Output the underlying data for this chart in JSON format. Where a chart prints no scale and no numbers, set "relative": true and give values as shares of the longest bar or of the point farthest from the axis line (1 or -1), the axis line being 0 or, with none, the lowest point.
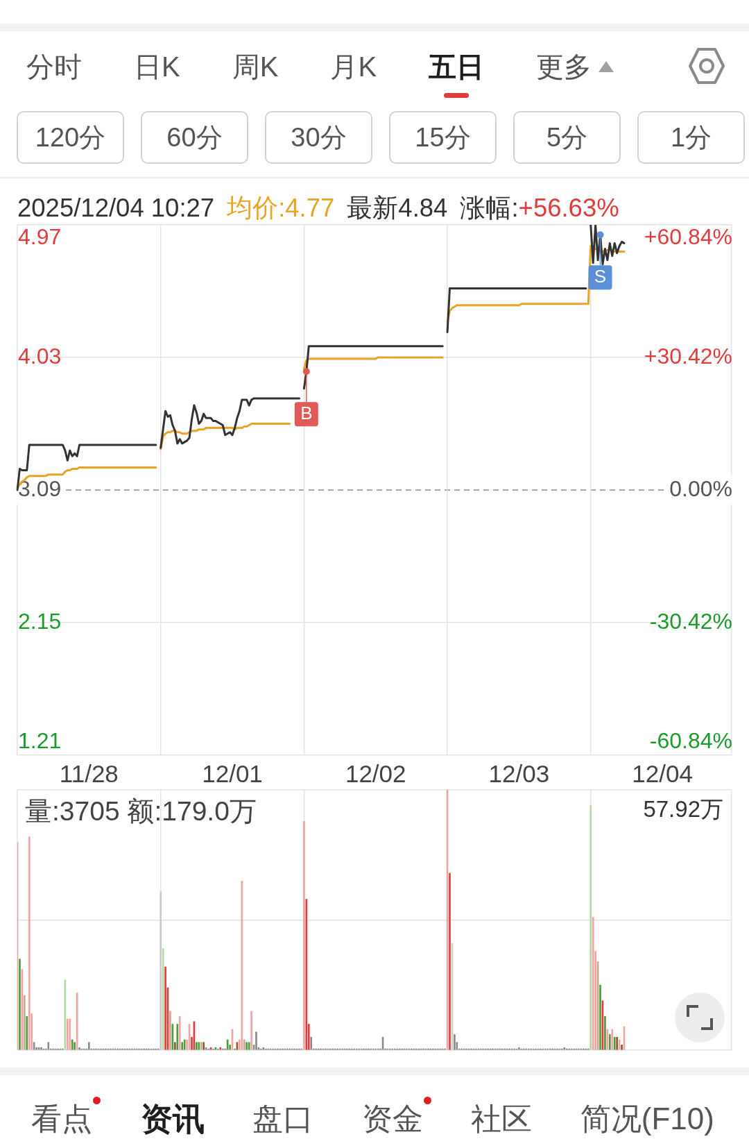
{
  "chart_data": [
    {
      "type": "other",
      "annotations": [
        "分时",
        "日K",
        "周K",
        "月K",
        "五日",
        "更多"
      ]
    },
    {
      "type": "other",
      "annotations": [
        "120分",
        "60分",
        "30分",
        "15分",
        "5分",
        "1分"
      ]
    },
    {
      "type": "line",
      "annotations": [
        "2025/12/04 10:27",
        "均价:4.77",
        "最新4.84",
        "涨幅:",
        "+56.63%",
        {
          "text": "B",
          "y": 3.93
        },
        {
          "text": "S",
          "y": 4.9
        }
      ],
      "categories": [
        null,
        null,
        null,
        null,
        null,
        null,
        null,
        null,
        null,
        null,
        null,
        null,
        null,
        null,
        null,
        null,
        null,
        null,
        null,
        null,
        null,
        null,
        null,
        null,
        null,
        null,
        null,
        null,
        null,
        null,
        "11/28",
        null,
        null,
        null,
        null,
        null,
        null,
        null,
        null,
        null,
        null,
        null,
        null,
        null,
        null,
        null,
        null,
        null,
        null,
        null,
        null,
        null,
        null,
        null,
        null,
        null,
        null,
        null,
        null,
        null,
        null,
        null,
        null,
        null,
        null,
        null,
        null,
        null,
        null,
        null,
        null,
        null,
        null,
        null,
        null,
        null,
        null,
        null,
        null,
        null,
        null,
        null,
        null,
        null,
        null,
        null,
        null,
        null,
        null,
        null,
        "12/01",
        null,
        null,
        null,
        null,
        null,
        null,
        null,
        null,
        null,
        null,
        null,
        null,
        null,
        null,
        null,
        null,
        null,
        null,
        null,
        null,
        null,
        null,
        null,
        null,
        null,
        null,
        null,
        null,
        null,
        null,
        null,
        null,
        null,
        null,
        null,
        null,
        null,
        null,
        null,
        null,
        null,
        null,
        null,
        null,
        null,
        null,
        null,
        null,
        null,
        null,
        null,
        null,
        null,
        null,
        null,
        null,
        null,
        null,
        null,
        "12/02",
        null,
        null,
        null,
        null,
        null,
        null,
        null,
        null,
        null,
        null,
        null,
        null,
        null,
        null,
        null,
        null,
        null,
        null,
        null,
        null,
        null,
        null,
        null,
        null,
        null,
        null,
        null,
        null,
        null,
        null,
        null,
        null,
        null,
        null,
        null,
        null,
        null,
        null,
        null,
        null,
        null,
        null,
        null,
        null,
        null,
        null,
        null,
        null,
        null,
        null,
        null,
        null,
        null,
        null,
        null,
        null,
        null,
        null,
        null,
        "12/03",
        null,
        null,
        null,
        null,
        null,
        null,
        null,
        null,
        null,
        null,
        null,
        null,
        null,
        null,
        null,
        null,
        null,
        null,
        null,
        null,
        null,
        null,
        null,
        null,
        null,
        null,
        null,
        null,
        null,
        null,
        null,
        null,
        null,
        null,
        null,
        null,
        null,
        null,
        null,
        null,
        null,
        null,
        null,
        null,
        null,
        null,
        null,
        null,
        null,
        null,
        null,
        null,
        null,
        null,
        null,
        null,
        null,
        null,
        null,
        "12/04",
        null,
        null,
        null,
        null,
        null,
        null,
        null,
        null,
        null,
        null,
        null,
        null,
        null,
        null,
        null,
        null,
        null,
        null,
        null,
        null,
        null,
        null,
        null,
        null,
        null,
        null,
        null,
        null,
        null
      ],
      "ylim": [
        1.21,
        4.97
      ],
      "yticks": [
        1.21,
        2.15,
        3.09,
        4.03,
        4.97
      ],
      "y2lim": [
        -60.84,
        60.84
      ],
      "y2ticks": [
        {
          "value": -60.84,
          "label": "-60.84%"
        },
        {
          "value": -30.42,
          "label": "-30.42%"
        },
        {
          "value": 0,
          "label": "0.00%"
        },
        {
          "value": 30.42,
          "label": "+30.42%"
        },
        {
          "value": 60.84,
          "label": "+60.84%"
        }
      ],
      "ref_lines": [
        {
          "axis": "y",
          "value": 3.09,
          "color": "#8c8c8c",
          "line_style": "dashed"
        }
      ],
      "grid": true,
      "series": [
        {
          "color": "#333333",
          "values": [
            3.09,
            3.24,
            3.23,
            3.23,
            3.23,
            3.41,
            3.41,
            3.41,
            3.41,
            3.41,
            3.41,
            3.41,
            3.41,
            3.41,
            3.41,
            3.41,
            3.41,
            3.41,
            3.41,
            3.41,
            3.37,
            3.3,
            3.37,
            3.33,
            3.35,
            3.33,
            3.41,
            3.41,
            3.41,
            3.41,
            3.41,
            3.41,
            3.41,
            3.41,
            3.41,
            3.41,
            3.41,
            3.41,
            3.41,
            3.41,
            3.41,
            3.41,
            3.41,
            3.41,
            3.41,
            3.41,
            3.41,
            3.41,
            3.41,
            3.41,
            3.41,
            3.41,
            3.41,
            3.41,
            3.41,
            3.41,
            3.41,
            3.41,
            3.41,
            null,
            3.39,
            3.52,
            3.65,
            3.61,
            3.62,
            3.55,
            3.51,
            3.42,
            3.45,
            3.42,
            3.43,
            3.44,
            3.46,
            3.59,
            3.69,
            3.64,
            3.56,
            3.58,
            3.63,
            3.6,
            3.6,
            3.6,
            3.58,
            3.58,
            3.57,
            3.56,
            3.55,
            3.48,
            3.49,
            3.5,
            3.48,
            3.53,
            3.6,
            3.65,
            3.73,
            3.73,
            3.73,
            3.69,
            3.73,
            3.74,
            3.74,
            3.74,
            3.74,
            3.74,
            3.74,
            3.74,
            3.74,
            3.74,
            3.74,
            3.74,
            3.74,
            3.74,
            3.74,
            3.74,
            3.74,
            3.74,
            3.74,
            3.74,
            3.74,
            null,
            3.81,
            3.93,
            4.11,
            4.11,
            4.11,
            4.11,
            4.11,
            4.11,
            4.11,
            4.11,
            4.11,
            4.11,
            4.11,
            4.11,
            4.11,
            4.11,
            4.11,
            4.11,
            4.11,
            4.11,
            4.11,
            4.11,
            4.11,
            4.11,
            4.11,
            4.11,
            4.11,
            4.11,
            4.11,
            4.11,
            4.11,
            4.11,
            4.11,
            4.11,
            4.11,
            4.11,
            4.11,
            4.11,
            4.11,
            4.11,
            4.11,
            4.11,
            4.11,
            4.11,
            4.11,
            4.11,
            4.11,
            4.11,
            4.11,
            4.11,
            4.11,
            4.11,
            4.11,
            4.11,
            4.11,
            4.11,
            4.11,
            4.11,
            4.11,
            null,
            4.21,
            4.52,
            4.52,
            4.52,
            4.52,
            4.52,
            4.52,
            4.52,
            4.52,
            4.52,
            4.52,
            4.52,
            4.52,
            4.52,
            4.52,
            4.52,
            4.52,
            4.52,
            4.52,
            4.52,
            4.52,
            4.52,
            4.52,
            4.52,
            4.52,
            4.52,
            4.52,
            4.52,
            4.52,
            4.52,
            4.52,
            4.52,
            4.52,
            4.52,
            4.52,
            4.52,
            4.52,
            4.52,
            4.52,
            4.52,
            4.52,
            4.52,
            4.52,
            4.52,
            4.52,
            4.52,
            4.52,
            4.52,
            4.52,
            4.52,
            4.52,
            4.52,
            4.52,
            4.52,
            4.52,
            4.52,
            4.52,
            4.52,
            4.52,
            null,
            4.97,
            4.7,
            4.97,
            4.72,
            4.9,
            4.69,
            4.8,
            4.72,
            4.84,
            4.75,
            4.84,
            4.77,
            4.82,
            4.85,
            4.84,
            null,
            null,
            null,
            null,
            null,
            null,
            null,
            null,
            null,
            null,
            null,
            null,
            null,
            null,
            null,
            null,
            null,
            null,
            null,
            null,
            null,
            null,
            null,
            null,
            null,
            null,
            null,
            null,
            null,
            null,
            null,
            null,
            null,
            null,
            null,
            null,
            null,
            null,
            null,
            null,
            null,
            null,
            null,
            null,
            null
          ]
        },
        {
          "color": "#e9a427",
          "values": [
            3.1,
            3.13,
            3.15,
            3.16,
            3.18,
            3.19,
            3.19,
            3.19,
            3.19,
            3.19,
            3.19,
            3.19,
            3.19,
            3.2,
            3.2,
            3.2,
            3.2,
            3.2,
            3.2,
            3.2,
            3.22,
            3.23,
            3.23,
            3.24,
            3.24,
            3.24,
            3.25,
            3.25,
            3.25,
            3.25,
            3.25,
            3.25,
            3.25,
            3.25,
            3.25,
            3.25,
            3.25,
            3.25,
            3.25,
            3.25,
            3.25,
            3.25,
            3.25,
            3.25,
            3.25,
            3.25,
            3.25,
            3.25,
            3.25,
            3.25,
            3.25,
            3.25,
            3.25,
            3.25,
            3.25,
            3.25,
            3.25,
            3.25,
            3.25,
            null,
            3.38,
            3.47,
            3.49,
            3.5,
            3.5,
            3.51,
            3.51,
            3.5,
            3.5,
            3.49,
            3.49,
            3.49,
            3.5,
            3.51,
            3.51,
            3.51,
            3.52,
            3.52,
            3.52,
            3.53,
            3.53,
            3.53,
            3.53,
            3.53,
            3.53,
            3.53,
            3.53,
            3.53,
            3.53,
            3.53,
            3.53,
            3.52,
            3.53,
            3.53,
            3.53,
            3.54,
            3.54,
            3.55,
            3.56,
            3.56,
            3.56,
            3.56,
            3.56,
            3.56,
            3.56,
            3.56,
            3.56,
            3.56,
            3.56,
            3.56,
            3.56,
            3.56,
            3.56,
            3.56,
            3.56,
            null,
            null,
            null,
            null,
            null,
            3.95,
            4.01,
            4.02,
            4.02,
            4.02,
            4.02,
            4.02,
            4.02,
            4.02,
            4.02,
            4.02,
            4.02,
            4.02,
            4.02,
            4.02,
            4.02,
            4.02,
            4.02,
            4.02,
            4.02,
            4.02,
            4.02,
            4.02,
            4.02,
            4.02,
            4.02,
            4.02,
            4.02,
            4.02,
            4.02,
            4.02,
            4.03,
            4.03,
            4.03,
            4.03,
            4.03,
            4.03,
            4.03,
            4.03,
            4.03,
            4.03,
            4.03,
            4.03,
            4.03,
            4.03,
            4.03,
            4.03,
            4.03,
            4.03,
            4.03,
            4.03,
            4.03,
            4.03,
            4.03,
            4.03,
            4.03,
            4.03,
            4.03,
            4.03,
            null,
            4.28,
            4.36,
            4.38,
            4.39,
            4.4,
            4.4,
            4.4,
            4.4,
            4.4,
            4.4,
            4.4,
            4.4,
            4.4,
            4.4,
            4.4,
            4.4,
            4.4,
            4.4,
            4.4,
            4.4,
            4.4,
            4.4,
            4.4,
            4.4,
            4.4,
            4.4,
            4.4,
            4.4,
            4.4,
            4.4,
            4.4,
            4.41,
            4.41,
            4.41,
            4.41,
            4.41,
            4.41,
            4.41,
            4.41,
            4.41,
            4.41,
            4.41,
            4.41,
            4.41,
            4.41,
            4.41,
            4.41,
            4.41,
            4.41,
            4.41,
            4.41,
            4.41,
            4.41,
            4.41,
            4.41,
            4.41,
            4.41,
            4.41,
            4.41,
            4.41,
            4.82,
            4.81,
            4.8,
            4.79,
            4.78,
            4.78,
            4.79,
            4.79,
            4.79,
            4.79,
            4.78,
            4.78,
            4.78,
            4.78,
            4.78,
            null,
            null,
            null,
            null,
            null,
            null,
            null,
            null,
            null,
            null,
            null,
            null,
            null,
            null,
            null,
            null,
            null,
            null,
            null,
            null,
            null,
            null,
            null,
            null,
            null,
            null,
            null,
            null,
            null,
            null,
            null,
            null,
            null,
            null,
            null,
            null,
            null,
            null,
            null,
            null,
            null,
            null,
            null,
            null,
            null
          ]
        }
      ]
    },
    {
      "type": "bar",
      "relative": true,
      "grid": true,
      "annotations": [
        "量:3705 额:179.0万",
        "57.92万"
      ],
      "categories": [
        null,
        null,
        null,
        null,
        null,
        null,
        null,
        null,
        null,
        null,
        null,
        null,
        null,
        null,
        null,
        null,
        null,
        null,
        null,
        null,
        null,
        null,
        null,
        null,
        null,
        null,
        null,
        null,
        null,
        null,
        null,
        null,
        null,
        null,
        null,
        null,
        null,
        null,
        null,
        null,
        null,
        null,
        null,
        null,
        null,
        null,
        null,
        null,
        null,
        null,
        null,
        null,
        null,
        null,
        null,
        null,
        null,
        null,
        null,
        null,
        null,
        null,
        null,
        null,
        null,
        null,
        null,
        null,
        null,
        null,
        null,
        null,
        null,
        null,
        null,
        null,
        null,
        null,
        null,
        null,
        null,
        null,
        null,
        null,
        null,
        null,
        null,
        null,
        null,
        null,
        null,
        null,
        null,
        null,
        null,
        null,
        null,
        null,
        null,
        null,
        null,
        null,
        null,
        null,
        null,
        null,
        null,
        null,
        null,
        null,
        null,
        null,
        null,
        null,
        null,
        null,
        null,
        null,
        null,
        null,
        null,
        null,
        null,
        null,
        null,
        null,
        null,
        null,
        null,
        null,
        null,
        null,
        null,
        null,
        null,
        null,
        null,
        null,
        null,
        null,
        null,
        null,
        null,
        null,
        null,
        null,
        null,
        null,
        null,
        null,
        null,
        null,
        null,
        null,
        null,
        null,
        null,
        null,
        null,
        null,
        null,
        null,
        null,
        null,
        null,
        null,
        null,
        null,
        null,
        null,
        null,
        null,
        null,
        null,
        null,
        null,
        null,
        null,
        null,
        null,
        null,
        null,
        null,
        null,
        null,
        null,
        null,
        null,
        null,
        null,
        null,
        null,
        null,
        null,
        null,
        null,
        null,
        null,
        null,
        null,
        null,
        null,
        null,
        null,
        null,
        null,
        null,
        null,
        null,
        null,
        null,
        null,
        null,
        null,
        null,
        null,
        null,
        null,
        null,
        null,
        null,
        null,
        null,
        null,
        null,
        null,
        null,
        null,
        null,
        null,
        null,
        null,
        null,
        null,
        null,
        null,
        null,
        null,
        null,
        null,
        null,
        null,
        null,
        null,
        null,
        null,
        null,
        null,
        null,
        null,
        null,
        null,
        null,
        null,
        null,
        null,
        null,
        null,
        null,
        null,
        null,
        null,
        null,
        null,
        null,
        null,
        null,
        null,
        null,
        null,
        null,
        null,
        null,
        null,
        null,
        null,
        null,
        null,
        null,
        null,
        null,
        null,
        null,
        null,
        null,
        null,
        null,
        null,
        null,
        null,
        null,
        null,
        null,
        null,
        null,
        null,
        null,
        null,
        null,
        null
      ],
      "values": [
        0.8,
        0.35,
        0.31,
        0.21,
        0.13,
        0.82,
        0.14,
        0.03,
        0.01,
        0.01,
        0.01,
        0.005,
        0.005,
        0.03,
        0.005,
        0.005,
        0.005,
        0.005,
        0.005,
        0.005,
        0.27,
        0.12,
        0.12,
        0.04,
        0.03,
        0.22,
        0.01,
        0.005,
        0.005,
        0.005,
        0.03,
        0.005,
        0.005,
        0.005,
        0.005,
        0.005,
        0.005,
        0.005,
        0.005,
        0.005,
        0.005,
        0.005,
        0.005,
        0.005,
        0.005,
        0.005,
        0.005,
        0.005,
        0.005,
        0.005,
        0.005,
        0.005,
        0.005,
        0.005,
        0.005,
        0.005,
        0.005,
        0.005,
        0.005,
        0.005,
        0.61,
        0.39,
        0.32,
        0.24,
        0.15,
        0.1,
        0.03,
        0.1,
        0.13,
        0.03,
        0.04,
        0.04,
        0.1,
        0.05,
        0.11,
        0.03,
        0.03,
        0.03,
        0.03,
        0.01,
        0.005,
        0.01,
        0.005,
        0.01,
        0.005,
        0.01,
        0.005,
        0.005,
        0.04,
        0.02,
        0.08,
        0.005,
        0.03,
        0.04,
        0.65,
        0.04,
        0.03,
        0.03,
        0.15,
        0.02,
        0.07,
        0.01,
        0.005,
        0.01,
        0.005,
        0.005,
        0.005,
        0.005,
        0.005,
        0.005,
        0.005,
        0.005,
        0.005,
        0.005,
        0.005,
        0.005,
        0.005,
        0.005,
        0.005,
        0.005,
        0.88,
        0.58,
        0.1,
        0.05,
        0.005,
        0.005,
        0.005,
        0.005,
        0.005,
        0.005,
        0.005,
        0.005,
        0.005,
        0.005,
        0.005,
        0.005,
        0.005,
        0.005,
        0.005,
        0.005,
        0.005,
        0.005,
        0.005,
        0.005,
        0.005,
        0.005,
        0.005,
        0.005,
        0.005,
        0.005,
        0.005,
        0.005,
        0.005,
        0.05,
        0.005,
        0.005,
        0.005,
        0.005,
        0.005,
        0.005,
        0.005,
        0.005,
        0.005,
        0.005,
        0.005,
        0.005,
        0.005,
        0.005,
        0.005,
        0.005,
        0.005,
        0.005,
        0.005,
        0.005,
        0.005,
        0.005,
        0.005,
        0.005,
        0.005,
        0.005,
        1,
        0.68,
        0.41,
        0.06,
        0.03,
        0.005,
        0.005,
        0.005,
        0.005,
        0.005,
        0.005,
        0.005,
        0.005,
        0.005,
        0.005,
        0.005,
        0.005,
        0.005,
        0.005,
        0.005,
        0.005,
        0.005,
        0.005,
        0.005,
        0.005,
        0.005,
        0.005,
        0.005,
        0.005,
        0.005,
        0.01,
        0.005,
        0.005,
        0.005,
        0.005,
        0.005,
        0.005,
        0.005,
        0.005,
        0.005,
        0.005,
        0.005,
        0.005,
        0.005,
        0.005,
        0.005,
        0.005,
        0.005,
        0.005,
        0.01,
        0.005,
        0.005,
        0.005,
        0.005,
        0.005,
        0.005,
        0.005,
        0.005,
        0.005,
        0.005,
        0.94,
        0.51,
        0.38,
        0.34,
        0.25,
        0.19,
        0.13,
        0.08,
        0.06,
        0.08,
        0.05,
        0.05,
        0.04,
        0.02,
        0.09,
        null,
        null,
        null,
        null,
        null,
        null,
        null,
        null,
        null,
        null,
        null,
        null,
        null,
        null,
        null,
        null,
        null,
        null,
        null,
        null,
        null,
        null,
        null,
        null,
        null,
        null,
        null,
        null,
        null,
        null,
        null,
        null,
        null,
        null,
        null,
        null,
        null,
        null,
        null,
        null,
        null,
        null,
        null,
        null,
        null
      ],
      "colors": [
        "#f0a3a3",
        "#4d9b3c",
        "#f0a3a3",
        "#caa88c",
        "#4d9b3c",
        "#f0a3a3",
        "#f0a3a3",
        "#8a8a8a",
        "#8a8a8a",
        "#8a8a8a",
        "#8a8a8a",
        "#8a8a8a",
        "#8a8a8a",
        "#8a8a8a",
        "#8a8a8a",
        "#8a8a8a",
        "#8a8a8a",
        "#8a8a8a",
        "#8a8a8a",
        "#8a8a8a",
        "#b3d7a5",
        "#f0a3a3",
        "#f0a3a3",
        "#4d9b3c",
        "#4d9b3c",
        "#f0a3a3",
        "#8a8a8a",
        "#8a8a8a",
        "#8a8a8a",
        "#8a8a8a",
        "#8a8a8a",
        "#8a8a8a",
        "#8a8a8a",
        "#8a8a8a",
        "#8a8a8a",
        "#8a8a8a",
        "#8a8a8a",
        "#8a8a8a",
        "#8a8a8a",
        "#8a8a8a",
        "#8a8a8a",
        "#8a8a8a",
        "#8a8a8a",
        "#8a8a8a",
        "#8a8a8a",
        "#8a8a8a",
        "#8a8a8a",
        "#8a8a8a",
        "#8a8a8a",
        "#8a8a8a",
        "#8a8a8a",
        "#8a8a8a",
        "#8a8a8a",
        "#8a8a8a",
        "#8a8a8a",
        "#8a8a8a",
        "#8a8a8a",
        "#8a8a8a",
        "#8a8a8a",
        "#8a8a8a",
        "#cccccc",
        "#b3d7a5",
        "#e23b3b",
        "#e23b3b",
        "#caa88c",
        "#4d9b3c",
        "#8e5a30",
        "#4d9b3c",
        "#f0a3a3",
        "#4d9b3c",
        "#4d9b3c",
        "#f0a3a3",
        "#f0a3a3",
        "#e23b3b",
        "#e23b3b",
        "#4d9b3c",
        "#4d9b3c",
        "#caa88c",
        "#8e5a30",
        "#8a8a8a",
        "#8a8a8a",
        "#e23b3b",
        "#8a8a8a",
        "#4d9b3c",
        "#8a8a8a",
        "#e23b3b",
        "#8a8a8a",
        "#8a8a8a",
        "#4d9b3c",
        "#4d9b3c",
        "#f0a3a3",
        "#8a8a8a",
        "#8e5a30",
        "#f0a3a3",
        "#f0a3a3",
        "#caa88c",
        "#4d9b3c",
        "#4d9b3c",
        "#f0a3a3",
        "#8a8a8a",
        "#8a8a8a",
        "#8a8a8a",
        "#8a8a8a",
        "#8a8a8a",
        "#8a8a8a",
        "#8a8a8a",
        "#8a8a8a",
        "#8a8a8a",
        "#8a8a8a",
        "#8a8a8a",
        "#8a8a8a",
        "#8a8a8a",
        "#8a8a8a",
        "#8a8a8a",
        "#8a8a8a",
        "#8a8a8a",
        "#8a8a8a",
        "#8a8a8a",
        "#8a8a8a",
        "#8a8a8a",
        "#f0a3a3",
        "#e23b3b",
        "#e23b3b",
        "#8a8a8a",
        "#8a8a8a",
        "#8a8a8a",
        "#8a8a8a",
        "#8a8a8a",
        "#8a8a8a",
        "#8a8a8a",
        "#8a8a8a",
        "#8a8a8a",
        "#8a8a8a",
        "#8a8a8a",
        "#8a8a8a",
        "#8a8a8a",
        "#8a8a8a",
        "#8a8a8a",
        "#8a8a8a",
        "#8a8a8a",
        "#8a8a8a",
        "#8a8a8a",
        "#8a8a8a",
        "#8a8a8a",
        "#8a8a8a",
        "#8a8a8a",
        "#8a8a8a",
        "#8a8a8a",
        "#8a8a8a",
        "#8a8a8a",
        "#8a8a8a",
        "#8a8a8a",
        "#8a8a8a",
        "#8a8a8a",
        "#8a8a8a",
        "#8a8a8a",
        "#8a8a8a",
        "#8a8a8a",
        "#8a8a8a",
        "#8a8a8a",
        "#8a8a8a",
        "#8a8a8a",
        "#8a8a8a",
        "#8a8a8a",
        "#8a8a8a",
        "#8a8a8a",
        "#8a8a8a",
        "#8a8a8a",
        "#8a8a8a",
        "#8a8a8a",
        "#8a8a8a",
        "#8a8a8a",
        "#8a8a8a",
        "#8a8a8a",
        "#8a8a8a",
        "#8a8a8a",
        "#8a8a8a",
        "#8a8a8a",
        "#8a8a8a",
        "#8a8a8a",
        "#f0a3a3",
        "#e23b3b",
        "#cccccc",
        "#8a8a8a",
        "#8a8a8a",
        "#8a8a8a",
        "#8a8a8a",
        "#8a8a8a",
        "#8a8a8a",
        "#8a8a8a",
        "#8a8a8a",
        "#8a8a8a",
        "#8a8a8a",
        "#8a8a8a",
        "#8a8a8a",
        "#8a8a8a",
        "#8a8a8a",
        "#8a8a8a",
        "#8a8a8a",
        "#8a8a8a",
        "#8a8a8a",
        "#8a8a8a",
        "#8a8a8a",
        "#8a8a8a",
        "#8a8a8a",
        "#8a8a8a",
        "#8a8a8a",
        "#8a8a8a",
        "#8a8a8a",
        "#8a8a8a",
        "#8a8a8a",
        "#8a8a8a",
        "#8a8a8a",
        "#8a8a8a",
        "#8a8a8a",
        "#8a8a8a",
        "#8a8a8a",
        "#8a8a8a",
        "#8a8a8a",
        "#8a8a8a",
        "#8a8a8a",
        "#8a8a8a",
        "#8a8a8a",
        "#8a8a8a",
        "#8a8a8a",
        "#8a8a8a",
        "#8a8a8a",
        "#8a8a8a",
        "#8a8a8a",
        "#8a8a8a",
        "#8a8a8a",
        "#8a8a8a",
        "#8a8a8a",
        "#8a8a8a",
        "#8a8a8a",
        "#8a8a8a",
        "#8a8a8a",
        "#8a8a8a",
        "#8a8a8a",
        "#8a8a8a",
        "#b3d7a5",
        "#f0a3a3",
        "#f0a3a3",
        "#caa88c",
        "#4d9b3c",
        "#e23b3b",
        "#4d9b3c",
        "#f0a3a3",
        "#4d9b3c",
        "#f0a3a3",
        "#4d9b3c",
        "#8e5a30",
        "#f0a3a3",
        "#8e5a30",
        "#f0a3a3",
        null,
        null,
        null,
        null,
        null,
        null,
        null,
        null,
        null,
        null,
        null,
        null,
        null,
        null,
        null,
        null,
        null,
        null,
        null,
        null,
        null,
        null,
        null,
        null,
        null,
        null,
        null,
        null,
        null,
        null,
        null,
        null,
        null,
        null,
        null,
        null,
        null,
        null,
        null,
        null,
        null,
        null,
        null,
        null,
        null
      ]
    },
    {
      "type": "other",
      "annotations": [
        "看点",
        "资讯",
        "盘口",
        "资金",
        "社区",
        "简况(F10)"
      ]
    }
  ]
}
